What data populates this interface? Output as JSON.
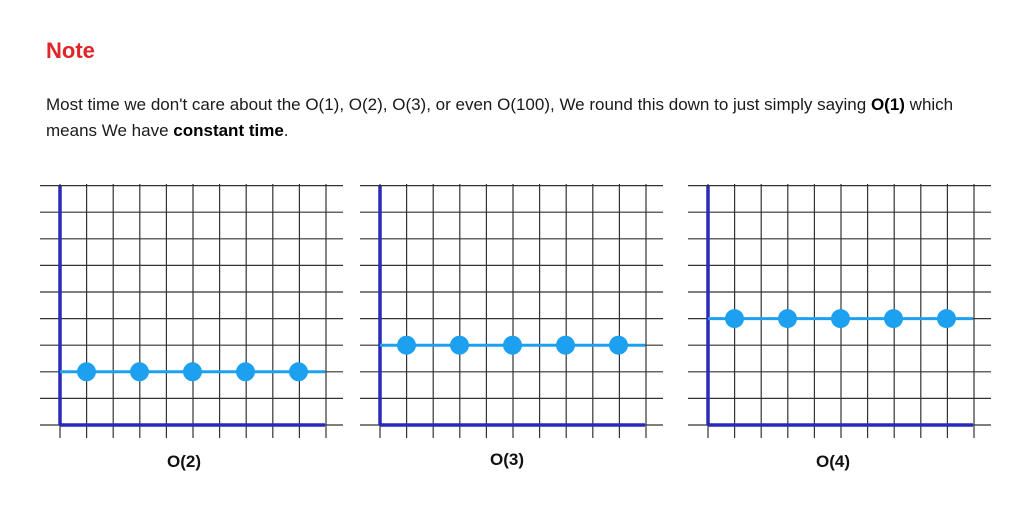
{
  "note": {
    "title": "Note"
  },
  "paragraph": {
    "text_part1": "Most time we don't care about the O(1), O(2), O(3), or even O(100), We round this down to just simply saying ",
    "bold1": "O(1)",
    "text_part2": " which means  We have ",
    "bold2": "constant time",
    "text_part3": "."
  },
  "colors": {
    "title": "#e0242a",
    "grid": "#333333",
    "axis": "#2a2ab8",
    "line": "#1ea0f0",
    "point": "#1ea0f0"
  },
  "chart_data": [
    {
      "type": "line",
      "title": "O(2)",
      "x": [
        1,
        3,
        5,
        7,
        9
      ],
      "values": [
        2,
        2,
        2,
        2,
        2
      ],
      "xlim": [
        0,
        10
      ],
      "ylim": [
        0,
        9
      ],
      "grid": true
    },
    {
      "type": "line",
      "title": "O(3)",
      "x": [
        1,
        3,
        5,
        7,
        9
      ],
      "values": [
        3,
        3,
        3,
        3,
        3
      ],
      "xlim": [
        0,
        10
      ],
      "ylim": [
        0,
        9
      ],
      "grid": true
    },
    {
      "type": "line",
      "title": "O(4)",
      "x": [
        1,
        3,
        5,
        7,
        9
      ],
      "values": [
        4,
        4,
        4,
        4,
        4
      ],
      "xlim": [
        0,
        10
      ],
      "ylim": [
        0,
        9
      ],
      "grid": true
    }
  ]
}
